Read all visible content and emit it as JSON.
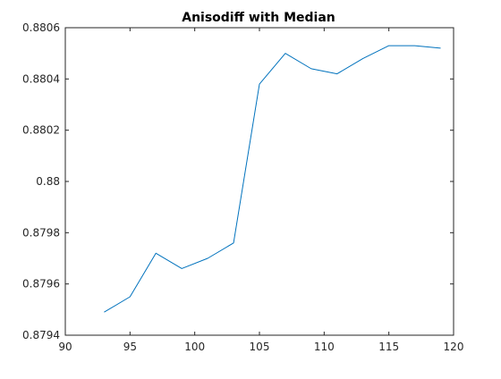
{
  "chart_data": {
    "type": "line",
    "title": "Anisodiff with Median",
    "xlabel": "",
    "ylabel": "",
    "xlim": [
      90,
      120
    ],
    "ylim": [
      0.8794,
      0.8806
    ],
    "xticks": [
      90,
      95,
      100,
      105,
      110,
      115,
      120
    ],
    "xtick_labels": [
      "90",
      "95",
      "100",
      "105",
      "110",
      "115",
      "120"
    ],
    "yticks": [
      0.8794,
      0.8796,
      0.8798,
      0.88,
      0.8802,
      0.8804,
      0.8806
    ],
    "ytick_labels": [
      "0.8794",
      "0.8796",
      "0.8798",
      "0.88",
      "0.8802",
      "0.8804",
      "0.8806"
    ],
    "grid": false,
    "legend": "none",
    "series": [
      {
        "color": "#0072bd",
        "x": [
          93,
          95,
          97,
          99,
          101,
          103,
          105,
          107,
          109,
          111,
          113,
          115,
          117,
          119
        ],
        "y": [
          0.87949,
          0.87955,
          0.87972,
          0.87966,
          0.8797,
          0.87976,
          0.88038,
          0.8805,
          0.88044,
          0.88042,
          0.88048,
          0.88053,
          0.88053,
          0.88052
        ]
      }
    ]
  }
}
